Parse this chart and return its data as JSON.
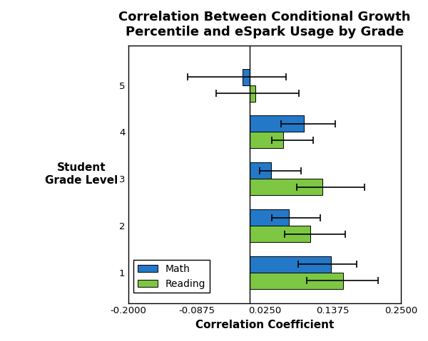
{
  "title": "Correlation Between Conditional Growth\nPercentile and eSpark Usage by Grade",
  "xlabel": "Correlation Coefficient",
  "ylabel": "Student\nGrade Level",
  "grades": [
    1,
    2,
    3,
    4,
    5
  ],
  "math_values": [
    0.135,
    0.065,
    0.035,
    0.09,
    -0.012
  ],
  "reading_values": [
    0.155,
    0.1,
    0.12,
    0.055,
    0.01
  ],
  "math_xerr_low": [
    0.055,
    0.028,
    0.018,
    0.038,
    0.09
  ],
  "math_xerr_high": [
    0.042,
    0.052,
    0.05,
    0.052,
    0.072
  ],
  "reading_xerr_low": [
    0.06,
    0.042,
    0.042,
    0.018,
    0.065
  ],
  "reading_xerr_high": [
    0.058,
    0.058,
    0.07,
    0.05,
    0.072
  ],
  "math_color": "#2478C8",
  "reading_color": "#7DC742",
  "bar_height": 0.35,
  "xlim": [
    -0.2,
    0.25
  ],
  "xticks": [
    -0.2,
    -0.0875,
    0.025,
    0.1375,
    0.25
  ],
  "xtick_labels": [
    "-0.2000",
    "-0.0875",
    "0.0250",
    "0.1375",
    "0.2500"
  ],
  "vline_x": 0.0,
  "title_fontsize": 13,
  "axis_label_fontsize": 11,
  "tick_fontsize": 9.5,
  "legend_fontsize": 10,
  "figsize": [
    6.0,
    4.79
  ],
  "dpi": 100
}
